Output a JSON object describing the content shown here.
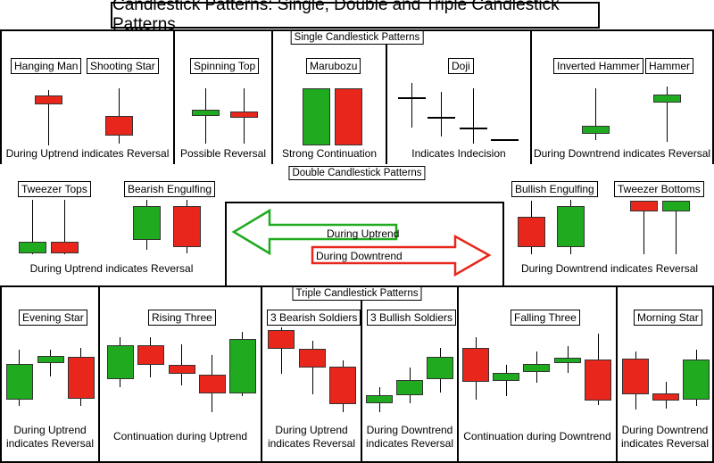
{
  "title": "Candlestick Patterns: Single, Double and Triple Candlestick Patterns",
  "sections": {
    "single": "Single Candlestick Patterns",
    "double": "Double Candlestick Patterns",
    "triple": "Triple Candlestick Patterns"
  },
  "patterns": {
    "hanging_man": "Hanging Man",
    "shooting_star": "Shooting Star",
    "spinning_top": "Spinning Top",
    "marubozu": "Marubozu",
    "doji": "Doji",
    "inverted_hammer": "Inverted Hammer",
    "hammer": "Hammer",
    "tweezer_tops": "Tweezer Tops",
    "bearish_engulfing": "Bearish Engulfing",
    "bullish_engulfing": "Bullish Engulfing",
    "tweezer_bottoms": "Tweezer Bottoms",
    "evening_star": "Evening Star",
    "rising_three": "Rising Three",
    "bearish_soldiers": "3 Bearish Soldiers",
    "bullish_soldiers": "3 Bullish Soldiers",
    "falling_three": "Falling Three",
    "morning_star": "Morning Star"
  },
  "captions": {
    "uptrend_reversal": "During Uptrend indicates Reversal",
    "possible_reversal": "Possible Reversal",
    "strong_continuation": "Strong Continuation",
    "indecision": "Indicates Indecision",
    "downtrend_reversal": "During Downtrend indicates Reversal",
    "double_uptrend_reversal": "During Uptrend indicates Reversal",
    "double_downtrend_reversal": "During Downtrend indicates Reversal",
    "evening_star_l1": "During Uptrend",
    "evening_star_l2": "indicates Reversal",
    "rising_three": "Continuation during Uptrend",
    "bearish_soldiers_l1": "During Uptrend",
    "bearish_soldiers_l2": "indicates Reversal",
    "bullish_soldiers_l1": "During Downtrend",
    "bullish_soldiers_l2": "indicates Reversal",
    "falling_three": "Continuation during Downtrend",
    "morning_star_l1": "During Downtrend",
    "morning_star_l2": "indicates Reversal"
  },
  "arrows": {
    "uptrend": "During Uptrend",
    "downtrend": "During Downtrend"
  },
  "colors": {
    "bullish": "#1faa1f",
    "bearish": "#e8261b"
  }
}
